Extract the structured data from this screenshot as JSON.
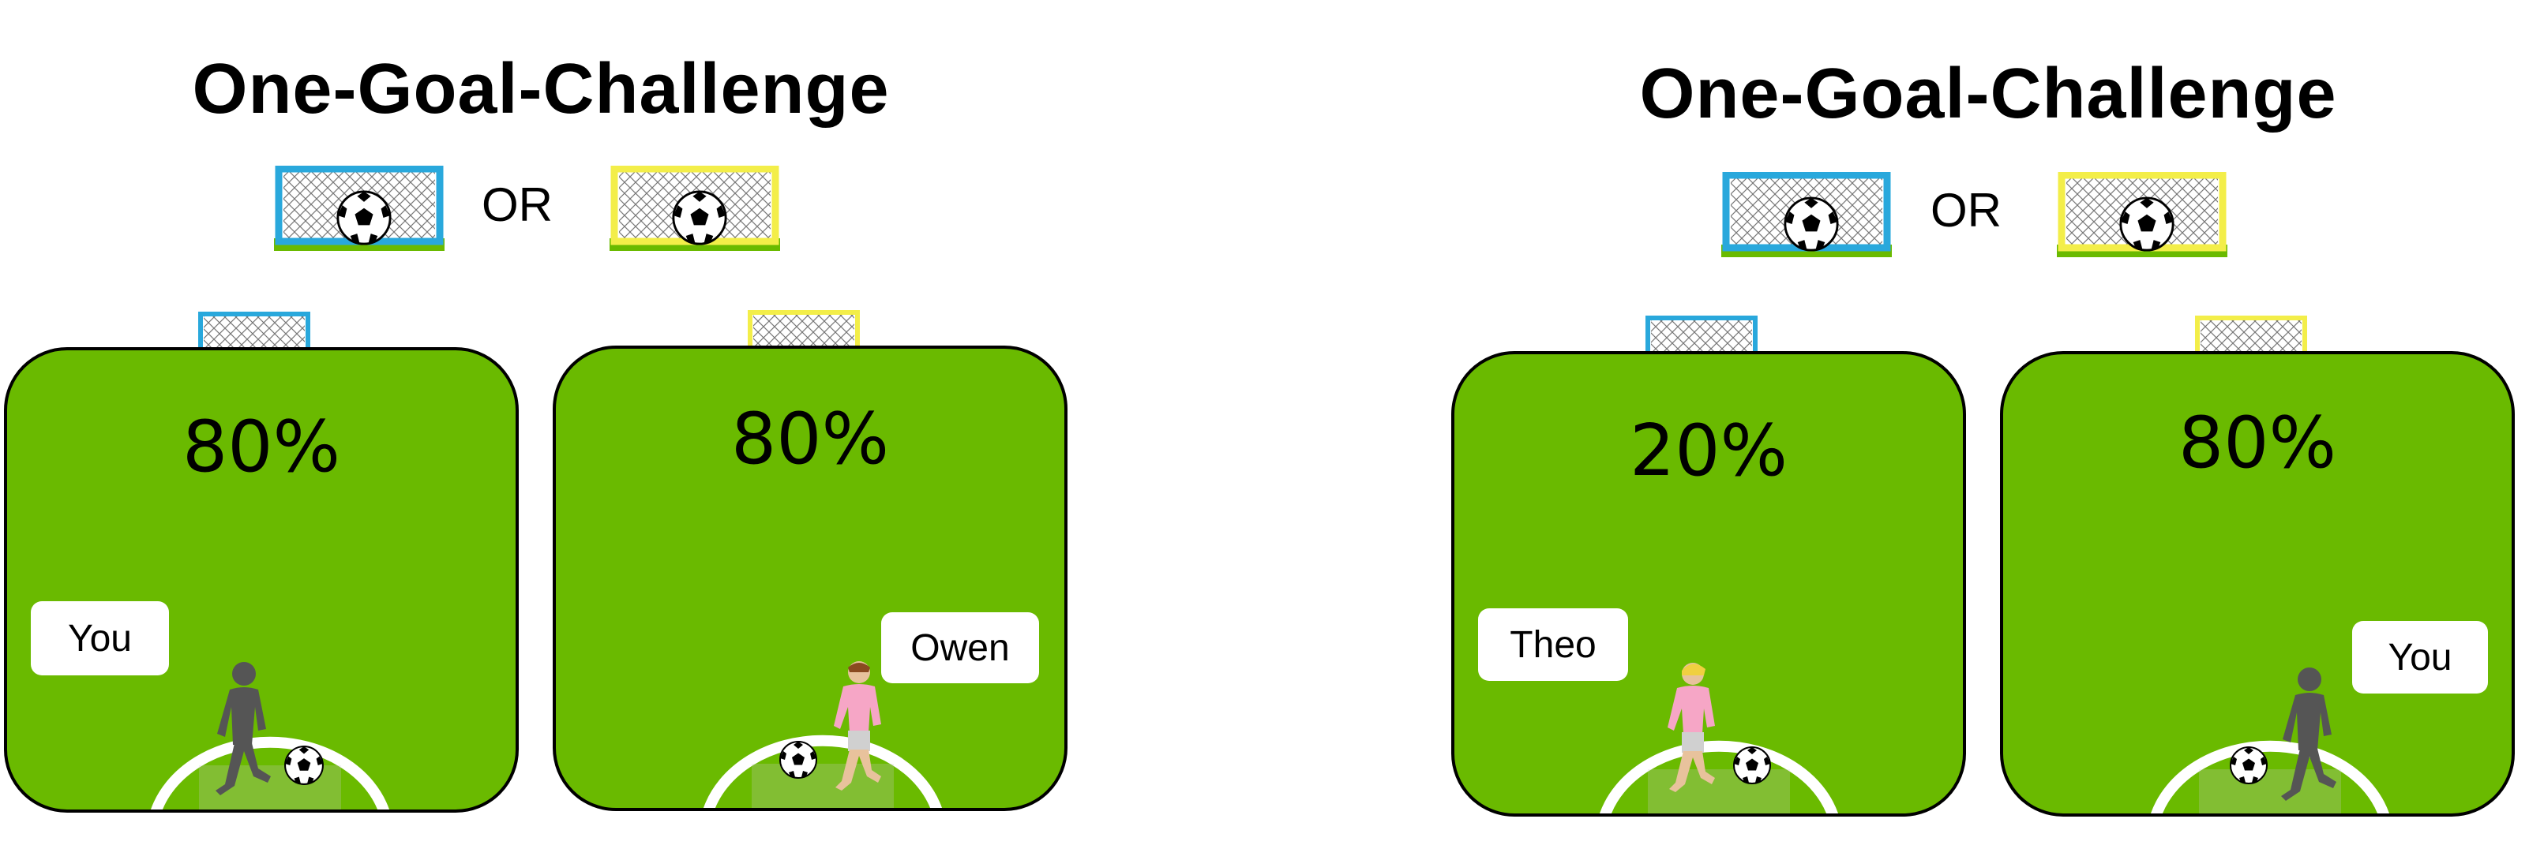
{
  "colors": {
    "field": "#6aba00",
    "blue_goal": "#29a8dc",
    "yellow_goal": "#f3ee49",
    "player_shadow": "#555555",
    "player_shirt": "#f6a6c6"
  },
  "panels": [
    {
      "title": "One-Goal-Challenge",
      "or_label": "OR",
      "fields": [
        {
          "goal_color": "blue",
          "percent": "80%",
          "player_label": "You",
          "player_type": "you"
        },
        {
          "goal_color": "yellow",
          "percent": "80%",
          "player_label": "Owen",
          "player_type": "other"
        }
      ]
    },
    {
      "title": "One-Goal-Challenge",
      "or_label": "OR",
      "fields": [
        {
          "goal_color": "blue",
          "percent": "20%",
          "player_label": "Theo",
          "player_type": "other"
        },
        {
          "goal_color": "yellow",
          "percent": "80%",
          "player_label": "You",
          "player_type": "you"
        }
      ]
    }
  ],
  "icons": [
    "soccer-ball-icon",
    "goal-icon",
    "player-icon"
  ]
}
